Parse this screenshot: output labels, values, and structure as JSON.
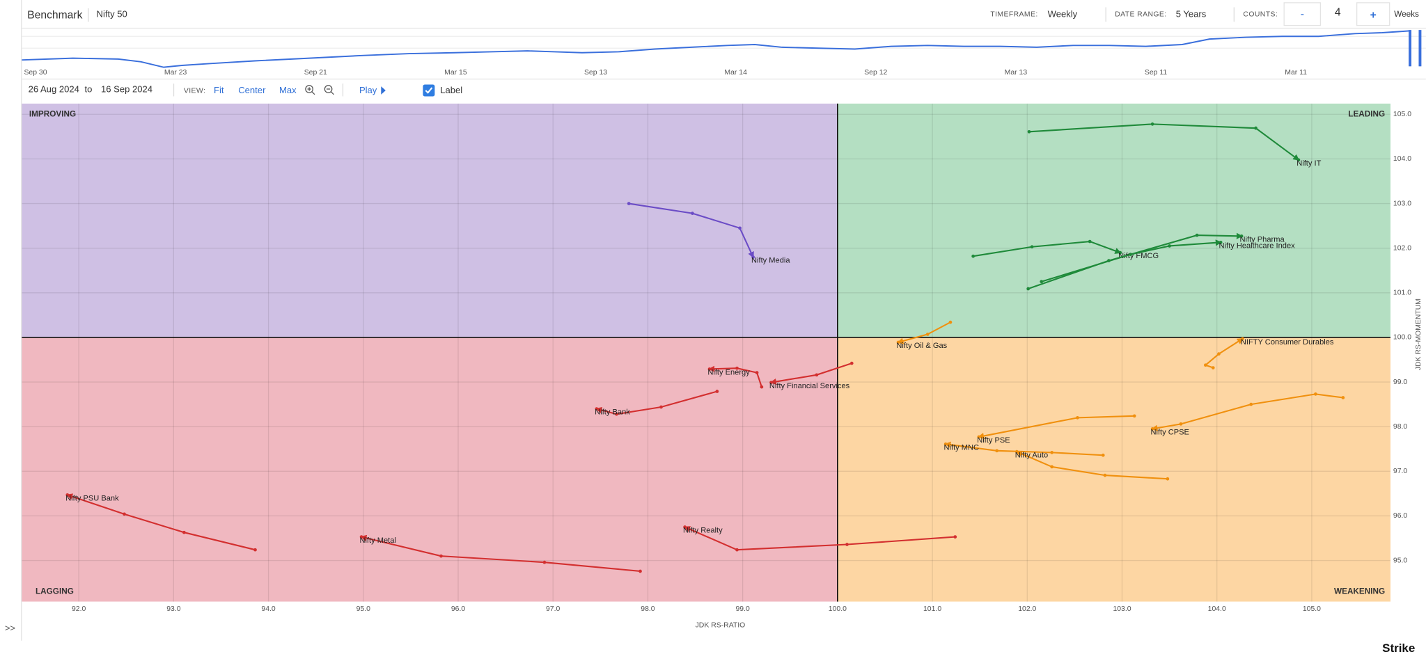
{
  "header": {
    "benchmark_label": "Benchmark",
    "benchmark": "Nifty 50",
    "timeframe_label": "TIMEFRAME:",
    "timeframe": "Weekly",
    "date_range_label": "DATE RANGE:",
    "date_range": "5 Years",
    "counts_label": "COUNTS:",
    "counts_minus": "-",
    "counts": 4,
    "counts_plus": "+",
    "counts_unit": "Weeks"
  },
  "timeline": {
    "labels": [
      "Sep 30",
      "Mar 23",
      "Sep 21",
      "Mar 15",
      "Sep 13",
      "Mar 14",
      "Sep 12",
      "Mar 13",
      "Sep 11",
      "Mar 11"
    ]
  },
  "toolbar": {
    "from": "26 Aug 2024",
    "to_word": "to",
    "to": "16 Sep 2024",
    "view_label": "VIEW:",
    "fit": "Fit",
    "center": "Center",
    "max": "Max",
    "play": "Play",
    "label_toggle": "Label"
  },
  "sidebar_toggle": ">>",
  "brand": "Strike",
  "chart_data": {
    "type": "scatter",
    "x_label": "JDK RS-RATIO",
    "y_label": "JDK RS-MOMENTUM",
    "xlim": [
      91.4,
      105.83
    ],
    "ylim": [
      94.08,
      105.24
    ],
    "xcenter": 100,
    "ycenter": 100,
    "grid": true,
    "xticks": [
      {
        "value": 92,
        "label": "92.0"
      },
      {
        "value": 93,
        "label": "93.0"
      },
      {
        "value": 94,
        "label": "94.0"
      },
      {
        "value": 95,
        "label": "95.0"
      },
      {
        "value": 96,
        "label": "96.0"
      },
      {
        "value": 97,
        "label": "97.0"
      },
      {
        "value": 98,
        "label": "98.0"
      },
      {
        "value": 99,
        "label": "99.0"
      },
      {
        "value": 100,
        "label": "100.0"
      },
      {
        "value": 101,
        "label": "101.0"
      },
      {
        "value": 102,
        "label": "102.0"
      },
      {
        "value": 103,
        "label": "103.0"
      },
      {
        "value": 104,
        "label": "104.0"
      },
      {
        "value": 105,
        "label": "105.0"
      }
    ],
    "yticks": [
      {
        "value": 95,
        "label": "95.0"
      },
      {
        "value": 96,
        "label": "96.0"
      },
      {
        "value": 97,
        "label": "97.0"
      },
      {
        "value": 98,
        "label": "98.0"
      },
      {
        "value": 99,
        "label": "99.0"
      },
      {
        "value": 100,
        "label": "100.0"
      },
      {
        "value": 101,
        "label": "101.0"
      },
      {
        "value": 102,
        "label": "102.0"
      },
      {
        "value": 103,
        "label": "103.0"
      },
      {
        "value": 104,
        "label": "104.0"
      },
      {
        "value": 105,
        "label": "105.0"
      }
    ],
    "quadrants": [
      {
        "name": "IMPROVING",
        "color": "#cfc0e4"
      },
      {
        "name": "LEADING",
        "color": "#b4dfc2"
      },
      {
        "name": "LAGGING",
        "color": "#f0b8c0"
      },
      {
        "name": "WEAKENING",
        "color": "#fdd6a3"
      }
    ],
    "series": [
      {
        "name": "Nifty IT",
        "color": "#1f8a3a",
        "x": [
          102.02,
          103.32,
          104.41,
          104.86
        ],
        "y": [
          104.61,
          104.78,
          104.69,
          103.98
        ]
      },
      {
        "name": "Nifty Media",
        "color": "#6b4cc6",
        "x": [
          97.8,
          98.47,
          98.97,
          99.11
        ],
        "y": [
          103.0,
          102.78,
          102.45,
          101.8
        ]
      },
      {
        "name": "Nifty FMCG",
        "color": "#1f8a3a",
        "x": [
          101.43,
          102.05,
          102.66,
          102.98
        ],
        "y": [
          101.82,
          102.03,
          102.15,
          101.9
        ]
      },
      {
        "name": "Nifty Pharma",
        "color": "#1f8a3a",
        "x": [
          102.01,
          102.86,
          103.79,
          104.26
        ],
        "y": [
          101.09,
          101.72,
          102.29,
          102.27
        ]
      },
      {
        "name": "Nifty Healthcare Index",
        "color": "#1f8a3a",
        "x": [
          102.15,
          103.09,
          103.5,
          104.04
        ],
        "y": [
          101.25,
          101.86,
          102.05,
          102.13
        ]
      },
      {
        "name": "Nifty Oil & Gas",
        "color": "#f0900e",
        "x": [
          101.19,
          100.95,
          100.64
        ],
        "y": [
          100.34,
          100.07,
          99.89
        ]
      },
      {
        "name": "NIFTY Consumer Durables",
        "color": "#f0900e",
        "x": [
          103.96,
          103.88,
          104.02,
          104.27
        ],
        "y": [
          99.32,
          99.38,
          99.63,
          99.97
        ]
      },
      {
        "name": "Nifty CPSE",
        "color": "#f0900e",
        "x": [
          105.33,
          105.04,
          104.36,
          103.62,
          103.32
        ],
        "y": [
          98.65,
          98.73,
          98.5,
          98.06,
          97.95
        ]
      },
      {
        "name": "Nifty PSE",
        "color": "#f0900e",
        "x": [
          103.13,
          102.53,
          101.49
        ],
        "y": [
          98.24,
          98.2,
          97.77
        ]
      },
      {
        "name": "Nifty MNC",
        "color": "#f0900e",
        "x": [
          102.8,
          102.26,
          101.68,
          101.14
        ],
        "y": [
          97.36,
          97.42,
          97.46,
          97.61
        ]
      },
      {
        "name": "Nifty Auto",
        "color": "#f0900e",
        "x": [
          103.48,
          102.82,
          102.26,
          101.89
        ],
        "y": [
          96.83,
          96.91,
          97.1,
          97.44
        ]
      },
      {
        "name": "Nifty Energy",
        "color": "#d32f2f",
        "x": [
          99.2,
          99.15,
          98.94,
          98.65
        ],
        "y": [
          98.89,
          99.21,
          99.31,
          99.29
        ]
      },
      {
        "name": "Nifty Financial Services",
        "color": "#d32f2f",
        "x": [
          100.15,
          99.78,
          99.3
        ],
        "y": [
          99.42,
          99.16,
          98.99
        ]
      },
      {
        "name": "Nifty Bank",
        "color": "#d32f2f",
        "x": [
          98.73,
          98.14,
          97.67,
          97.46
        ],
        "y": [
          98.79,
          98.44,
          98.28,
          98.4
        ]
      },
      {
        "name": "Nifty PSU Bank",
        "color": "#d32f2f",
        "x": [
          93.86,
          93.11,
          92.48,
          91.88
        ],
        "y": [
          95.24,
          95.63,
          96.04,
          96.47
        ]
      },
      {
        "name": "Nifty Metal",
        "color": "#d32f2f",
        "x": [
          97.92,
          96.91,
          95.82,
          94.98
        ],
        "y": [
          94.76,
          94.96,
          95.1,
          95.53
        ]
      },
      {
        "name": "Nifty Realty",
        "color": "#d32f2f",
        "x": [
          101.24,
          100.1,
          98.94,
          98.39
        ],
        "y": [
          95.53,
          95.36,
          95.24,
          95.75
        ]
      }
    ]
  }
}
